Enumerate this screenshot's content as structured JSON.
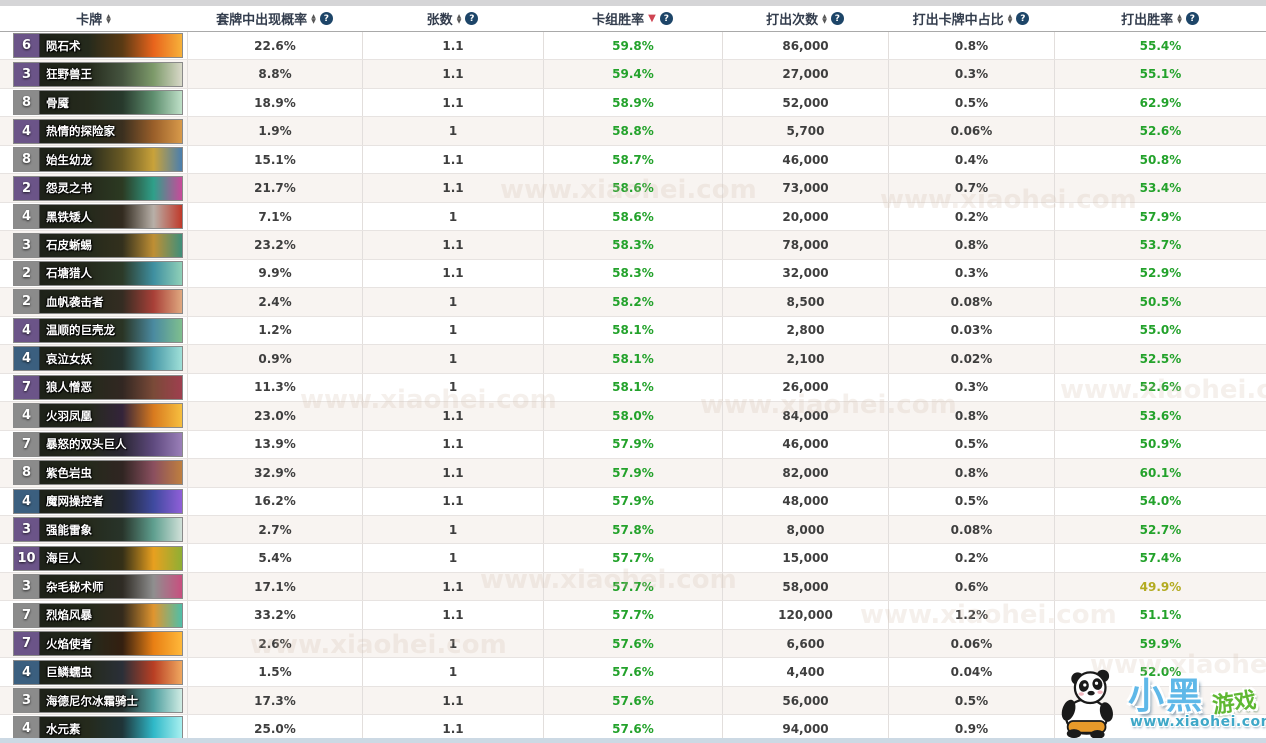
{
  "table": {
    "columns": [
      {
        "label": "卡牌",
        "sort": "both",
        "help": false
      },
      {
        "label": "套牌中出现概率",
        "sort": "both",
        "help": true
      },
      {
        "label": "张数",
        "sort": "both",
        "help": true
      },
      {
        "label": "卡组胜率",
        "sort": "active_desc",
        "help": true
      },
      {
        "label": "打出次数",
        "sort": "both",
        "help": true
      },
      {
        "label": "打出卡牌中占比",
        "sort": "both",
        "help": true
      },
      {
        "label": "打出胜率",
        "sort": "both",
        "help": true
      }
    ],
    "rows": [
      {
        "cost": "6",
        "rarity": "purple",
        "name": "陨石术",
        "art": [
          "#5a3a14",
          "#e8641c",
          "#f7b13a"
        ],
        "appear": "22.6%",
        "copies": "1.1",
        "deck_wr": "59.8%",
        "times": "86,000",
        "share": "0.8%",
        "played_wr": "55.4%",
        "played_wr_tone": "green"
      },
      {
        "cost": "3",
        "rarity": "purple",
        "name": "狂野兽王",
        "art": [
          "#45543f",
          "#7d9a6a",
          "#d8d8c8"
        ],
        "appear": "8.8%",
        "copies": "1.1",
        "deck_wr": "59.4%",
        "times": "27,000",
        "share": "0.3%",
        "played_wr": "55.1%",
        "played_wr_tone": "green"
      },
      {
        "cost": "8",
        "rarity": "gray",
        "name": "骨魇",
        "art": [
          "#27392c",
          "#5f8f6f",
          "#bfe0c8"
        ],
        "appear": "18.9%",
        "copies": "1.1",
        "deck_wr": "58.9%",
        "times": "52,000",
        "share": "0.5%",
        "played_wr": "62.9%",
        "played_wr_tone": "green"
      },
      {
        "cost": "4",
        "rarity": "purple",
        "name": "热情的探险家",
        "art": [
          "#3a2f1f",
          "#9a5f2a",
          "#d89a4a"
        ],
        "appear": "1.9%",
        "copies": "1",
        "deck_wr": "58.8%",
        "times": "5,700",
        "share": "0.06%",
        "played_wr": "52.6%",
        "played_wr_tone": "green"
      },
      {
        "cost": "8",
        "rarity": "gray",
        "name": "始生幼龙",
        "art": [
          "#6a5a24",
          "#c9a23a",
          "#4a7fae"
        ],
        "appear": "15.1%",
        "copies": "1.1",
        "deck_wr": "58.7%",
        "times": "46,000",
        "share": "0.4%",
        "played_wr": "50.8%",
        "played_wr_tone": "green"
      },
      {
        "cost": "2",
        "rarity": "purple",
        "name": "怨灵之书",
        "art": [
          "#2c3a22",
          "#2fa08a",
          "#c84a9a"
        ],
        "appear": "21.7%",
        "copies": "1.1",
        "deck_wr": "58.6%",
        "times": "73,000",
        "share": "0.7%",
        "played_wr": "53.4%",
        "played_wr_tone": "green"
      },
      {
        "cost": "4",
        "rarity": "gray",
        "name": "黑铁矮人",
        "art": [
          "#322a1f",
          "#b8b0a8",
          "#c0392a"
        ],
        "appear": "7.1%",
        "copies": "1",
        "deck_wr": "58.6%",
        "times": "20,000",
        "share": "0.2%",
        "played_wr": "57.9%",
        "played_wr_tone": "green"
      },
      {
        "cost": "3",
        "rarity": "gray",
        "name": "石皮蜥蜴",
        "art": [
          "#33301d",
          "#bf8f34",
          "#3f8f7a"
        ],
        "appear": "23.2%",
        "copies": "1.1",
        "deck_wr": "58.3%",
        "times": "78,000",
        "share": "0.8%",
        "played_wr": "53.7%",
        "played_wr_tone": "green"
      },
      {
        "cost": "2",
        "rarity": "gray",
        "name": "石塘猎人",
        "art": [
          "#2c3a28",
          "#3f8fa0",
          "#8fd0b8"
        ],
        "appear": "9.9%",
        "copies": "1.1",
        "deck_wr": "58.3%",
        "times": "32,000",
        "share": "0.3%",
        "played_wr": "52.9%",
        "played_wr_tone": "green"
      },
      {
        "cost": "2",
        "rarity": "gray",
        "name": "血帆袭击者",
        "art": [
          "#342c22",
          "#a84038",
          "#e0a87f"
        ],
        "appear": "2.4%",
        "copies": "1",
        "deck_wr": "58.2%",
        "times": "8,500",
        "share": "0.08%",
        "played_wr": "50.5%",
        "played_wr_tone": "green"
      },
      {
        "cost": "4",
        "rarity": "purple",
        "name": "温顺的巨壳龙",
        "art": [
          "#2a3424",
          "#4a8aa0",
          "#7fbf8f"
        ],
        "appear": "1.2%",
        "copies": "1",
        "deck_wr": "58.1%",
        "times": "2,800",
        "share": "0.03%",
        "played_wr": "55.0%",
        "played_wr_tone": "green"
      },
      {
        "cost": "4",
        "rarity": "blue",
        "name": "哀泣女妖",
        "art": [
          "#24342f",
          "#4a9aa8",
          "#9fe0d8"
        ],
        "appear": "0.9%",
        "copies": "1",
        "deck_wr": "58.1%",
        "times": "2,100",
        "share": "0.02%",
        "played_wr": "52.5%",
        "played_wr_tone": "green"
      },
      {
        "cost": "7",
        "rarity": "purple",
        "name": "狼人憎恶",
        "art": [
          "#322722",
          "#7a4a38",
          "#9f3f4f"
        ],
        "appear": "11.3%",
        "copies": "1",
        "deck_wr": "58.1%",
        "times": "26,000",
        "share": "0.3%",
        "played_wr": "52.6%",
        "played_wr_tone": "green"
      },
      {
        "cost": "4",
        "rarity": "gray",
        "name": "火羽凤凰",
        "art": [
          "#34243a",
          "#d87a1f",
          "#f7bf3f"
        ],
        "appear": "23.0%",
        "copies": "1.1",
        "deck_wr": "58.0%",
        "times": "84,000",
        "share": "0.8%",
        "played_wr": "53.6%",
        "played_wr_tone": "green"
      },
      {
        "cost": "7",
        "rarity": "gray",
        "name": "暴怒的双头巨人",
        "art": [
          "#2b2734",
          "#5f4a7f",
          "#9a7fb8"
        ],
        "appear": "13.9%",
        "copies": "1.1",
        "deck_wr": "57.9%",
        "times": "46,000",
        "share": "0.5%",
        "played_wr": "50.9%",
        "played_wr_tone": "green"
      },
      {
        "cost": "8",
        "rarity": "gray",
        "name": "紫色岩虫",
        "art": [
          "#302522",
          "#8a4f5f",
          "#bf7f3f"
        ],
        "appear": "32.9%",
        "copies": "1.1",
        "deck_wr": "57.9%",
        "times": "82,000",
        "share": "0.8%",
        "played_wr": "60.1%",
        "played_wr_tone": "green"
      },
      {
        "cost": "4",
        "rarity": "blue",
        "name": "魔网操控者",
        "art": [
          "#232838",
          "#3f4a9f",
          "#8f5fd8"
        ],
        "appear": "16.2%",
        "copies": "1.1",
        "deck_wr": "57.9%",
        "times": "48,000",
        "share": "0.5%",
        "played_wr": "54.0%",
        "played_wr_tone": "green"
      },
      {
        "cost": "3",
        "rarity": "purple",
        "name": "强能雷象",
        "art": [
          "#28342a",
          "#5f9f8f",
          "#d0e0d8"
        ],
        "appear": "2.7%",
        "copies": "1",
        "deck_wr": "57.8%",
        "times": "8,000",
        "share": "0.08%",
        "played_wr": "52.7%",
        "played_wr_tone": "green"
      },
      {
        "cost": "10",
        "rarity": "purple",
        "name": "海巨人",
        "art": [
          "#342f17",
          "#e8a01f",
          "#8faf34"
        ],
        "appear": "5.4%",
        "copies": "1",
        "deck_wr": "57.7%",
        "times": "15,000",
        "share": "0.2%",
        "played_wr": "57.4%",
        "played_wr_tone": "green"
      },
      {
        "cost": "3",
        "rarity": "gray",
        "name": "杂毛秘术师",
        "art": [
          "#2f2b24",
          "#8f8f8f",
          "#c84f7f"
        ],
        "appear": "17.1%",
        "copies": "1.1",
        "deck_wr": "57.7%",
        "times": "58,000",
        "share": "0.6%",
        "played_wr": "49.9%",
        "played_wr_tone": "olive"
      },
      {
        "cost": "7",
        "rarity": "gray",
        "name": "烈焰风暴",
        "art": [
          "#342a1c",
          "#e0952f",
          "#4fbfa8"
        ],
        "appear": "33.2%",
        "copies": "1.1",
        "deck_wr": "57.7%",
        "times": "120,000",
        "share": "1.2%",
        "played_wr": "51.1%",
        "played_wr_tone": "green"
      },
      {
        "cost": "7",
        "rarity": "purple",
        "name": "火焰使者",
        "art": [
          "#341f10",
          "#e87f14",
          "#ffb83a"
        ],
        "appear": "2.6%",
        "copies": "1",
        "deck_wr": "57.6%",
        "times": "6,600",
        "share": "0.06%",
        "played_wr": "59.9%",
        "played_wr_tone": "green"
      },
      {
        "cost": "4",
        "rarity": "blue",
        "name": "巨鳞蠕虫",
        "art": [
          "#2a2f38",
          "#b83f24",
          "#f0a85f"
        ],
        "appear": "1.5%",
        "copies": "1",
        "deck_wr": "57.6%",
        "times": "4,400",
        "share": "0.04%",
        "played_wr": "52.0%",
        "played_wr_tone": "green"
      },
      {
        "cost": "3",
        "rarity": "gray",
        "name": "海德尼尔冰霜骑士",
        "art": [
          "#27302f",
          "#4f9f9f",
          "#d0ece4"
        ],
        "appear": "17.3%",
        "copies": "1.1",
        "deck_wr": "57.6%",
        "times": "56,000",
        "share": "0.5%",
        "played_wr": "",
        "played_wr_tone": "green"
      },
      {
        "cost": "4",
        "rarity": "gray",
        "name": "水元素",
        "art": [
          "#1f3438",
          "#2fb8c8",
          "#a8f0f0"
        ],
        "appear": "25.0%",
        "copies": "1.1",
        "deck_wr": "57.6%",
        "times": "94,000",
        "share": "0.9%",
        "played_wr": "",
        "played_wr_tone": "green"
      }
    ]
  },
  "colors": {
    "win_green": "#23a22b",
    "win_olive": "#b3ab21",
    "sort_active_red": "#cf4452",
    "help_icon_bg": "#1d4568",
    "cost_purple": "#6b5488",
    "cost_gray": "#8b8b8b",
    "cost_blue": "#3b5f7f"
  },
  "watermark": {
    "text": "www.xiaohei.com"
  },
  "logo": {
    "title_part1": "小黑",
    "title_part2": "游戏",
    "url": "www.xiaohei.com"
  }
}
